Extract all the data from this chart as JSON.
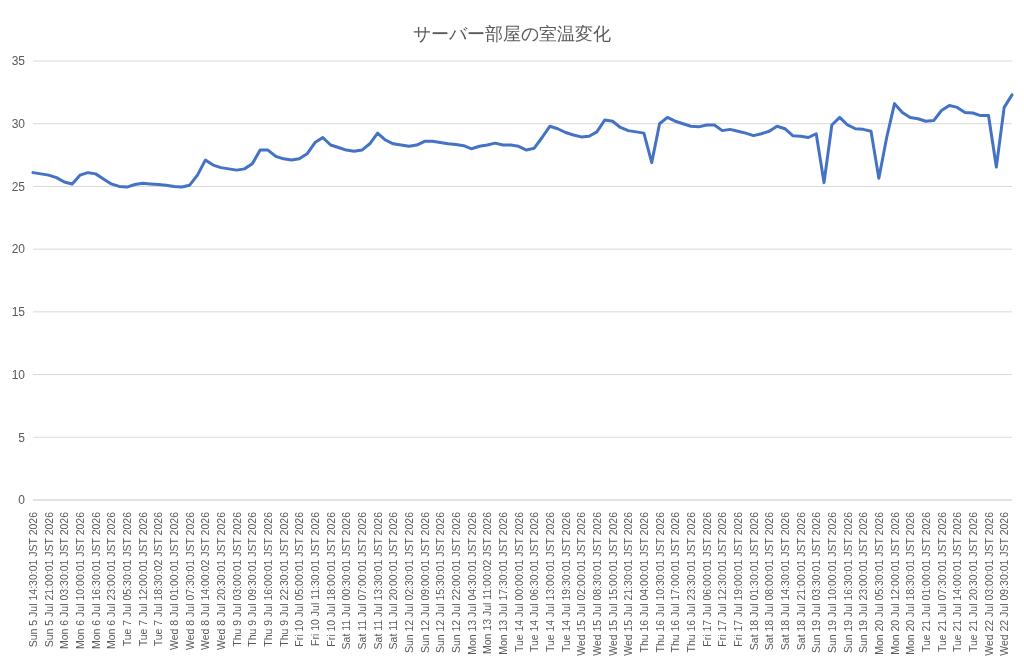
{
  "chart_data": {
    "type": "line",
    "title": "サーバー部屋の室温変化",
    "categories": [
      "Sun 5 Jul 14:30:01 JST 2026",
      null,
      "Sun 5 Jul 21:00:01 JST 2026",
      null,
      "Mon 6 Jul 03:30:01 JST 2026",
      null,
      "Mon 6 Jul 10:00:01 JST 2026",
      null,
      "Mon 6 Jul 16:30:01 JST 2026",
      null,
      "Mon 6 Jul 23:00:01 JST 2026",
      null,
      "Tue 7 Jul 05:30:01 JST 2026",
      null,
      "Tue 7 Jul 12:00:01 JST 2026",
      null,
      "Tue 7 Jul 18:30:02 JST 2026",
      null,
      "Wed 8 Jul 01:00:01 JST 2026",
      null,
      "Wed 8 Jul 07:30:01 JST 2026",
      null,
      "Wed 8 Jul 14:00:02 JST 2026",
      null,
      "Wed 8 Jul 20:30:01 JST 2026",
      null,
      "Thu 9 Jul 03:00:01 JST 2026",
      null,
      "Thu 9 Jul 09:30:01 JST 2026",
      null,
      "Thu 9 Jul 16:00:01 JST 2026",
      null,
      "Thu 9 Jul 22:30:01 JST 2026",
      null,
      "Fri 10 Jul 05:00:01 JST 2026",
      null,
      "Fri 10 Jul 11:30:01 JST 2026",
      null,
      "Fri 10 Jul 18:00:01 JST 2026",
      null,
      "Sat 11 Jul 00:30:01 JST 2026",
      null,
      "Sat 11 Jul 07:00:01 JST 2026",
      null,
      "Sat 11 Jul 13:30:01 JST 2026",
      null,
      "Sat 11 Jul 20:00:01 JST 2026",
      null,
      "Sun 12 Jul 02:30:01 JST 2026",
      null,
      "Sun 12 Jul 09:00:01 JST 2026",
      null,
      "Sun 12 Jul 15:30:01 JST 2026",
      null,
      "Sun 12 Jul 22:00:01 JST 2026",
      null,
      "Mon 13 Jul 04:30:01 JST 2026",
      null,
      "Mon 13 Jul 11:00:02 JST 2026",
      null,
      "Mon 13 Jul 17:30:01 JST 2026",
      null,
      "Tue 14 Jul 00:00:01 JST 2026",
      null,
      "Tue 14 Jul 06:30:01 JST 2026",
      null,
      "Tue 14 Jul 13:00:01 JST 2026",
      null,
      "Tue 14 Jul 19:30:01 JST 2026",
      null,
      "Wed 15 Jul 02:00:01 JST 2026",
      null,
      "Wed 15 Jul 08:30:01 JST 2026",
      null,
      "Wed 15 Jul 15:00:01 JST 2026",
      null,
      "Wed 15 Jul 21:30:01 JST 2026",
      null,
      "Thu 16 Jul 04:00:01 JST 2026",
      null,
      "Thu 16 Jul 10:30:01 JST 2026",
      null,
      "Thu 16 Jul 17:00:01 JST 2026",
      null,
      "Thu 16 Jul 23:30:01 JST 2026",
      null,
      "Fri 17 Jul 06:00:01 JST 2026",
      null,
      "Fri 17 Jul 12:30:01 JST 2026",
      null,
      "Fri 17 Jul 19:00:01 JST 2026",
      null,
      "Sat 18 Jul 01:30:01 JST 2026",
      null,
      "Sat 18 Jul 08:00:01 JST 2026",
      null,
      "Sat 18 Jul 14:30:01 JST 2026",
      null,
      "Sat 18 Jul 21:00:01 JST 2026",
      null,
      "Sun 19 Jul 03:30:01 JST 2026",
      null,
      "Sun 19 Jul 10:00:01 JST 2026",
      null,
      "Sun 19 Jul 16:30:01 JST 2026",
      null,
      "Sun 19 Jul 23:00:01 JST 2026",
      null,
      "Mon 20 Jul 05:30:01 JST 2026",
      null,
      "Mon 20 Jul 12:00:01 JST 2026",
      null,
      "Mon 20 Jul 18:30:01 JST 2026",
      null,
      "Tue 21 Jul 01:00:01 JST 2026",
      null,
      "Tue 21 Jul 07:30:01 JST 2026",
      null,
      "Tue 21 Jul 14:00:01 JST 2026",
      null,
      "Tue 21 Jul 20:30:01 JST 2026",
      null,
      "Wed 22 Jul 03:00:01 JST 2026",
      null,
      "Wed 22 Jul 09:30:01 JST 2026",
      null
    ],
    "series": [
      {
        "color": "#4472c4",
        "values": [
          26.1,
          26.0,
          25.9,
          25.7,
          25.35,
          25.2,
          25.9,
          26.1,
          26.0,
          25.6,
          25.2,
          25.0,
          24.95,
          25.15,
          25.25,
          25.2,
          25.15,
          25.1,
          25.0,
          24.95,
          25.1,
          25.9,
          27.1,
          26.7,
          26.5,
          26.4,
          26.3,
          26.4,
          26.8,
          27.9,
          27.9,
          27.4,
          27.2,
          27.1,
          27.2,
          27.6,
          28.5,
          28.9,
          28.3,
          28.1,
          27.9,
          27.8,
          27.9,
          28.4,
          29.25,
          28.7,
          28.4,
          28.3,
          28.2,
          28.3,
          28.6,
          28.6,
          28.5,
          28.4,
          28.35,
          28.25,
          28.0,
          28.2,
          28.3,
          28.45,
          28.3,
          28.3,
          28.2,
          27.9,
          28.05,
          28.9,
          29.8,
          29.6,
          29.3,
          29.1,
          28.95,
          29.0,
          29.35,
          30.3,
          30.2,
          29.7,
          29.45,
          29.35,
          29.25,
          26.9,
          30.0,
          30.5,
          30.2,
          30.0,
          29.8,
          29.75,
          29.9,
          29.9,
          29.45,
          29.55,
          29.4,
          29.25,
          29.05,
          29.2,
          29.4,
          29.8,
          29.6,
          29.05,
          29.0,
          28.9,
          29.2,
          25.3,
          29.9,
          30.5,
          29.9,
          29.6,
          29.55,
          29.4,
          25.65,
          28.9,
          31.6,
          30.9,
          30.5,
          30.4,
          30.2,
          30.25,
          31.05,
          31.45,
          31.3,
          30.9,
          30.85,
          30.65,
          30.65,
          26.55,
          31.3,
          32.3
        ]
      }
    ],
    "ylim": [
      0,
      35
    ],
    "yticks": [
      0,
      5,
      10,
      15,
      20,
      25,
      30,
      35
    ],
    "grid": "y",
    "legend": false,
    "marker": "none",
    "line_style": "solid"
  }
}
